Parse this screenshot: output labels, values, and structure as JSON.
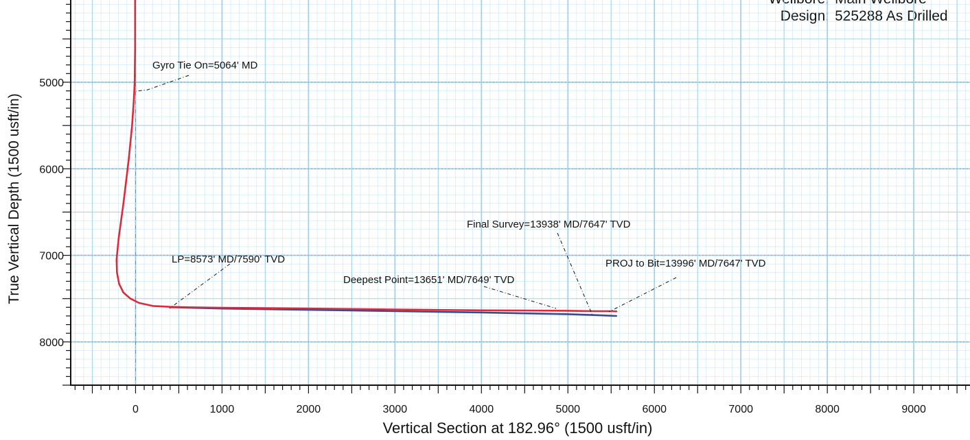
{
  "header": {
    "wellbore_label": "Wellbore:",
    "wellbore_value": "Main Wellbore",
    "design_label": "Design:",
    "design_value": "525288 As Drilled"
  },
  "chart_data": {
    "type": "line",
    "title": "",
    "xlabel": "Vertical Section at 182.96° (1500 usft/in)",
    "ylabel": "True Vertical Depth (1500 usft/in)",
    "xlim": [
      -750,
      9650
    ],
    "ylim": [
      4050,
      8500
    ],
    "y_inverted": true,
    "x_ticks": [
      0,
      1000,
      2000,
      3000,
      4000,
      5000,
      6000,
      7000,
      8000,
      9000
    ],
    "y_ticks": [
      5000,
      6000,
      7000,
      8000
    ],
    "grid": true,
    "grid_color": "#9fd3ea",
    "series": [
      {
        "color": "#e0283b",
        "x": [
          -5,
          -5,
          -10,
          -20,
          -40,
          -80,
          -140,
          -195,
          -220,
          -215,
          -190,
          -140,
          -60,
          40,
          200,
          400,
          600,
          1000,
          2000,
          3000,
          4000,
          5000,
          5300,
          5500,
          5560
        ],
        "y": [
          4050,
          4600,
          5000,
          5200,
          5500,
          5900,
          6400,
          6800,
          7050,
          7200,
          7330,
          7430,
          7500,
          7550,
          7585,
          7595,
          7600,
          7605,
          7615,
          7625,
          7635,
          7640,
          7645,
          7646,
          7647
        ]
      },
      {
        "color": "#3a4a8a",
        "x": [
          400,
          1000,
          2000,
          3000,
          4000,
          4500,
          5000,
          5300,
          5560
        ],
        "y": [
          7600,
          7615,
          7630,
          7645,
          7660,
          7670,
          7680,
          7690,
          7700
        ]
      }
    ],
    "annotations": [
      {
        "text": "Gyro Tie On=5064' MD",
        "x": 0,
        "y": 5064
      },
      {
        "text": "LP=8573' MD/7590' TVD",
        "x": 420,
        "y": 7590
      },
      {
        "text": "Deepest Point=13651' MD/7649' TVD",
        "x": 5000,
        "y": 7649
      },
      {
        "text": "Final Survey=13938' MD/7647' TVD",
        "x": 5560,
        "y": 7647
      },
      {
        "text": "PROJ to Bit=13996' MD/7647' TVD",
        "x": 5580,
        "y": 7647
      }
    ]
  }
}
